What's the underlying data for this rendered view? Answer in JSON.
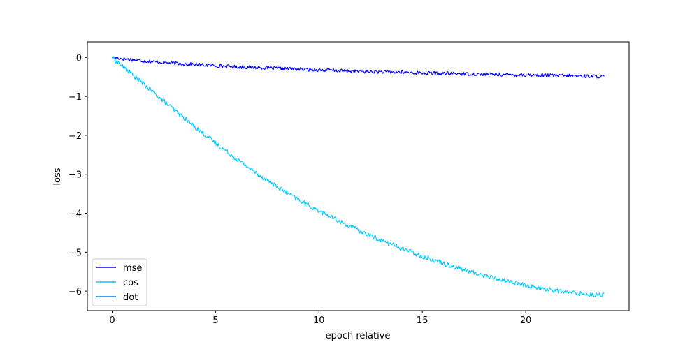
{
  "chart_data": {
    "type": "line",
    "title": "",
    "xlabel": "epoch relative",
    "ylabel": "loss",
    "xlim": [
      -1.2,
      25.0
    ],
    "ylim": [
      -6.5,
      0.4
    ],
    "x_ticks": [
      0,
      5,
      10,
      15,
      20
    ],
    "y_ticks": [
      0,
      -1,
      -2,
      -3,
      -4,
      -5,
      -6
    ],
    "x_tick_labels": [
      "0",
      "5",
      "10",
      "15",
      "20"
    ],
    "y_tick_labels": [
      "0",
      "−1",
      "−2",
      "−3",
      "−4",
      "−5",
      "−6"
    ],
    "grid": false,
    "legend_position": "lower-left",
    "series": [
      {
        "name": "mse",
        "color": "#0000ff",
        "x": [
          0,
          1,
          2,
          3,
          4,
          5,
          6,
          7,
          8,
          9,
          10,
          11,
          12,
          13,
          14,
          15,
          16,
          17,
          18,
          19,
          20,
          21,
          22,
          23,
          23.8
        ],
        "y": [
          0.0,
          -0.06,
          -0.11,
          -0.15,
          -0.18,
          -0.21,
          -0.24,
          -0.26,
          -0.28,
          -0.3,
          -0.32,
          -0.34,
          -0.36,
          -0.37,
          -0.38,
          -0.4,
          -0.41,
          -0.42,
          -0.43,
          -0.44,
          -0.45,
          -0.46,
          -0.47,
          -0.48,
          -0.49
        ],
        "noise": 0.045
      },
      {
        "name": "cos",
        "color": "#00ccff",
        "x": [
          0,
          1,
          2,
          3,
          4,
          5,
          6,
          7,
          8,
          9,
          10,
          11,
          12,
          13,
          14,
          15,
          16,
          17,
          18,
          19,
          20,
          21,
          22,
          23,
          23.8
        ],
        "y": [
          0.0,
          -0.45,
          -0.9,
          -1.35,
          -1.78,
          -2.2,
          -2.6,
          -2.98,
          -3.33,
          -3.65,
          -3.94,
          -4.21,
          -4.46,
          -4.69,
          -4.9,
          -5.1,
          -5.28,
          -5.45,
          -5.6,
          -5.73,
          -5.85,
          -5.95,
          -6.03,
          -6.08,
          -6.1
        ],
        "noise": 0.06
      },
      {
        "name": "dot",
        "color": "#0080ff",
        "x": [],
        "y": [],
        "noise": 0
      }
    ]
  }
}
